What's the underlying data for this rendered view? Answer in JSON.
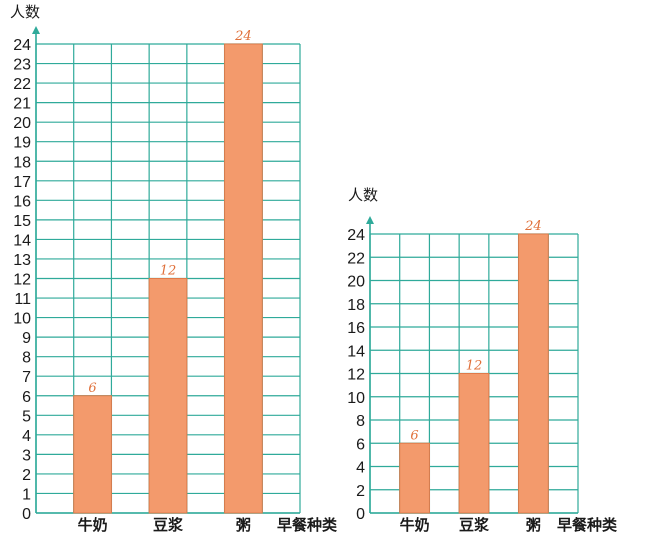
{
  "colors": {
    "grid": "#2faa9a",
    "bar": "#f39a6c",
    "bar_edge": "#e07a4a",
    "label": "#e0703a",
    "axis_arrow": "#2faa9a"
  },
  "chart_data": [
    {
      "type": "bar",
      "ylabel": "人数",
      "xlabel": "早餐种类",
      "categories": [
        "牛奶",
        "豆浆",
        "粥"
      ],
      "values": [
        6,
        12,
        24
      ],
      "data_labels": [
        "6",
        "12",
        "24"
      ],
      "ylim": [
        0,
        24
      ],
      "yticks": [
        "0",
        "1",
        "2",
        "3",
        "4",
        "5",
        "6",
        "7",
        "8",
        "9",
        "10",
        "11",
        "12",
        "13",
        "14",
        "15",
        "16",
        "17",
        "18",
        "19",
        "20",
        "21",
        "22",
        "23",
        "24"
      ],
      "grid": true
    },
    {
      "type": "bar",
      "ylabel": "人数",
      "xlabel": "早餐种类",
      "categories": [
        "牛奶",
        "豆浆",
        "粥"
      ],
      "values": [
        6,
        12,
        24
      ],
      "data_labels": [
        "6",
        "12",
        "24"
      ],
      "ylim": [
        0,
        24
      ],
      "yticks": [
        "0",
        "2",
        "4",
        "6",
        "8",
        "10",
        "12",
        "14",
        "16",
        "18",
        "20",
        "22",
        "24"
      ],
      "grid": true
    }
  ]
}
